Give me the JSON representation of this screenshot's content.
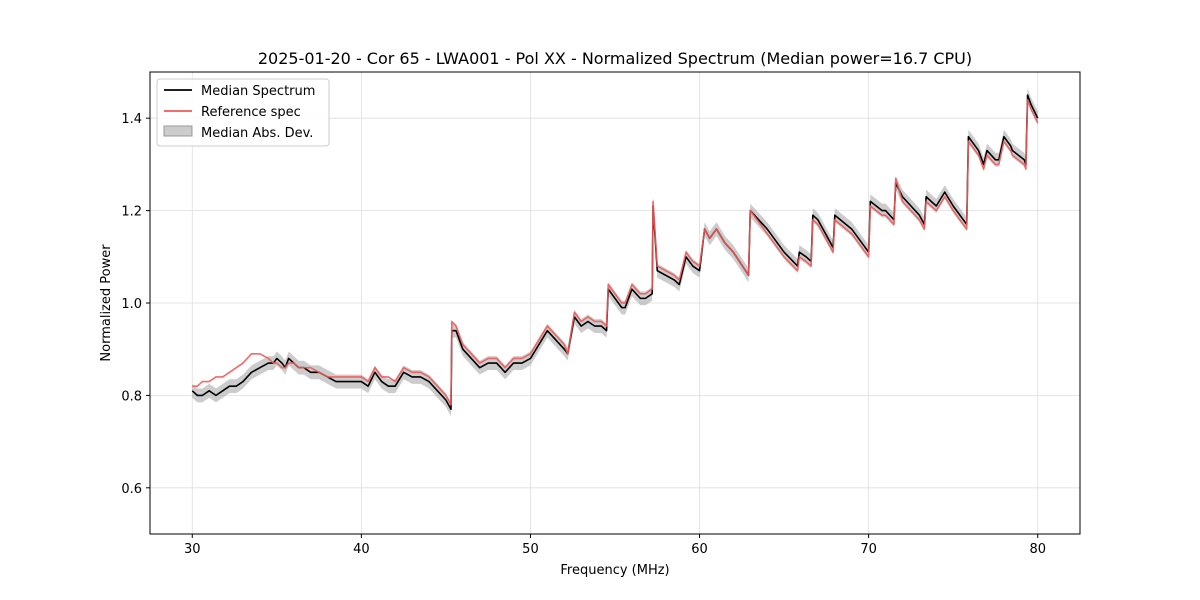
{
  "chart_data": {
    "type": "line",
    "title": "2025-01-20 - Cor 65 - LWA001 - Pol XX - Normalized Spectrum (Median power=16.7 CPU)",
    "xlabel": "Frequency (MHz)",
    "ylabel": "Normalized Power",
    "xlim": [
      27.5,
      82.5
    ],
    "ylim": [
      0.5,
      1.5
    ],
    "xticks": [
      30,
      40,
      50,
      60,
      70,
      80
    ],
    "yticks": [
      0.6,
      0.8,
      1.0,
      1.2,
      1.4
    ],
    "xtick_labels": [
      "30",
      "40",
      "50",
      "60",
      "70",
      "80"
    ],
    "ytick_labels": [
      "0.6",
      "0.8",
      "1.0",
      "1.2",
      "1.4"
    ],
    "grid": true,
    "legend_position": "top-left",
    "legend": [
      "Median Spectrum",
      "Reference spec",
      "Median Abs. Dev."
    ],
    "colors": {
      "median": "#000000",
      "reference": "#ee5a5a",
      "mad": "#999999"
    },
    "mad_width": 0.015,
    "series": [
      {
        "name": "Median Spectrum",
        "x": [
          30.0,
          30.3,
          30.6,
          31.0,
          31.4,
          31.8,
          32.2,
          32.6,
          33.0,
          33.5,
          34.0,
          34.5,
          34.8,
          35.0,
          35.3,
          35.5,
          35.7,
          36.0,
          36.3,
          36.6,
          37.0,
          37.5,
          38.0,
          38.5,
          39.0,
          39.5,
          40.0,
          40.4,
          40.8,
          41.2,
          41.6,
          42.0,
          42.5,
          43.0,
          43.5,
          44.0,
          44.5,
          45.0,
          45.3,
          45.35,
          45.6,
          46.0,
          46.5,
          47.0,
          47.5,
          48.0,
          48.5,
          49.0,
          49.5,
          50.0,
          50.5,
          51.0,
          51.5,
          52.0,
          52.2,
          52.6,
          53.0,
          53.4,
          53.8,
          54.2,
          54.5,
          54.6,
          55.0,
          55.4,
          55.6,
          56.0,
          56.5,
          56.8,
          57.2,
          57.25,
          57.5,
          58.0,
          58.5,
          58.8,
          59.2,
          59.6,
          60.0,
          60.3,
          60.6,
          61.0,
          61.5,
          62.0,
          62.9,
          63.0,
          64.0,
          65.0,
          65.8,
          65.9,
          66.3,
          66.6,
          66.7,
          67.0,
          67.9,
          68.0,
          69.0,
          70.0,
          70.1,
          70.8,
          71.0,
          71.5,
          71.6,
          72.0,
          73.0,
          73.3,
          73.4,
          74.0,
          74.5,
          75.0,
          75.8,
          75.9,
          76.5,
          76.8,
          77.0,
          77.5,
          77.7,
          78.0,
          78.4,
          78.5,
          79.2,
          79.3,
          79.4,
          79.6,
          80.0
        ],
        "y": [
          0.81,
          0.8,
          0.8,
          0.81,
          0.8,
          0.81,
          0.82,
          0.82,
          0.83,
          0.85,
          0.86,
          0.87,
          0.87,
          0.88,
          0.87,
          0.86,
          0.88,
          0.87,
          0.86,
          0.86,
          0.85,
          0.85,
          0.84,
          0.83,
          0.83,
          0.83,
          0.83,
          0.82,
          0.85,
          0.83,
          0.82,
          0.82,
          0.85,
          0.84,
          0.84,
          0.83,
          0.81,
          0.79,
          0.77,
          0.94,
          0.94,
          0.9,
          0.88,
          0.86,
          0.87,
          0.87,
          0.85,
          0.87,
          0.87,
          0.88,
          0.91,
          0.94,
          0.92,
          0.9,
          0.89,
          0.97,
          0.95,
          0.96,
          0.95,
          0.95,
          0.94,
          1.03,
          1.01,
          0.99,
          0.99,
          1.03,
          1.01,
          1.01,
          1.02,
          1.21,
          1.07,
          1.06,
          1.05,
          1.04,
          1.1,
          1.08,
          1.07,
          1.16,
          1.14,
          1.16,
          1.13,
          1.11,
          1.06,
          1.2,
          1.16,
          1.11,
          1.08,
          1.11,
          1.1,
          1.09,
          1.19,
          1.18,
          1.12,
          1.19,
          1.16,
          1.11,
          1.22,
          1.2,
          1.2,
          1.18,
          1.26,
          1.23,
          1.19,
          1.17,
          1.23,
          1.21,
          1.24,
          1.21,
          1.17,
          1.36,
          1.33,
          1.3,
          1.33,
          1.31,
          1.31,
          1.36,
          1.34,
          1.33,
          1.31,
          1.3,
          1.45,
          1.43,
          1.4
        ]
      },
      {
        "name": "Reference spec",
        "x": [
          30.0,
          30.3,
          30.6,
          31.0,
          31.4,
          31.8,
          32.2,
          32.6,
          33.0,
          33.5,
          34.0,
          34.5,
          34.8,
          35.0,
          35.3,
          35.5,
          35.7,
          36.0,
          36.3,
          36.6,
          37.0,
          37.5,
          38.0,
          38.5,
          39.0,
          39.5,
          40.0,
          40.4,
          40.8,
          41.2,
          41.6,
          42.0,
          42.5,
          43.0,
          43.5,
          44.0,
          44.5,
          45.0,
          45.3,
          45.35,
          45.6,
          46.0,
          46.5,
          47.0,
          47.5,
          48.0,
          48.5,
          49.0,
          49.5,
          50.0,
          50.5,
          51.0,
          51.5,
          52.0,
          52.2,
          52.6,
          53.0,
          53.4,
          53.8,
          54.2,
          54.5,
          54.6,
          55.0,
          55.4,
          55.6,
          56.0,
          56.5,
          56.8,
          57.2,
          57.25,
          57.5,
          58.0,
          58.5,
          58.8,
          59.2,
          59.6,
          60.0,
          60.3,
          60.6,
          61.0,
          61.5,
          62.0,
          62.9,
          63.0,
          64.0,
          65.0,
          65.8,
          65.9,
          66.3,
          66.6,
          66.7,
          67.0,
          67.9,
          68.0,
          69.0,
          70.0,
          70.1,
          70.8,
          71.0,
          71.5,
          71.6,
          72.0,
          73.0,
          73.3,
          73.4,
          74.0,
          74.5,
          75.0,
          75.8,
          75.9,
          76.5,
          76.8,
          77.0,
          77.5,
          77.7,
          78.0,
          78.4,
          78.5,
          79.2,
          79.3,
          79.4,
          79.6,
          80.0
        ],
        "y": [
          0.82,
          0.82,
          0.83,
          0.83,
          0.84,
          0.84,
          0.85,
          0.86,
          0.87,
          0.89,
          0.89,
          0.88,
          0.87,
          0.87,
          0.86,
          0.86,
          0.87,
          0.87,
          0.86,
          0.86,
          0.86,
          0.85,
          0.84,
          0.84,
          0.84,
          0.84,
          0.84,
          0.83,
          0.86,
          0.84,
          0.84,
          0.83,
          0.86,
          0.85,
          0.85,
          0.84,
          0.82,
          0.8,
          0.78,
          0.96,
          0.95,
          0.91,
          0.89,
          0.87,
          0.88,
          0.88,
          0.86,
          0.88,
          0.88,
          0.89,
          0.92,
          0.95,
          0.93,
          0.91,
          0.89,
          0.98,
          0.96,
          0.97,
          0.96,
          0.96,
          0.95,
          1.04,
          1.02,
          1.0,
          1.0,
          1.04,
          1.02,
          1.02,
          1.03,
          1.22,
          1.08,
          1.07,
          1.06,
          1.05,
          1.11,
          1.09,
          1.08,
          1.16,
          1.14,
          1.16,
          1.13,
          1.11,
          1.06,
          1.2,
          1.15,
          1.1,
          1.07,
          1.1,
          1.09,
          1.08,
          1.18,
          1.17,
          1.11,
          1.18,
          1.15,
          1.1,
          1.21,
          1.19,
          1.19,
          1.17,
          1.27,
          1.22,
          1.18,
          1.16,
          1.22,
          1.2,
          1.23,
          1.2,
          1.16,
          1.35,
          1.32,
          1.29,
          1.32,
          1.3,
          1.3,
          1.35,
          1.33,
          1.32,
          1.3,
          1.29,
          1.44,
          1.42,
          1.39
        ]
      }
    ]
  }
}
